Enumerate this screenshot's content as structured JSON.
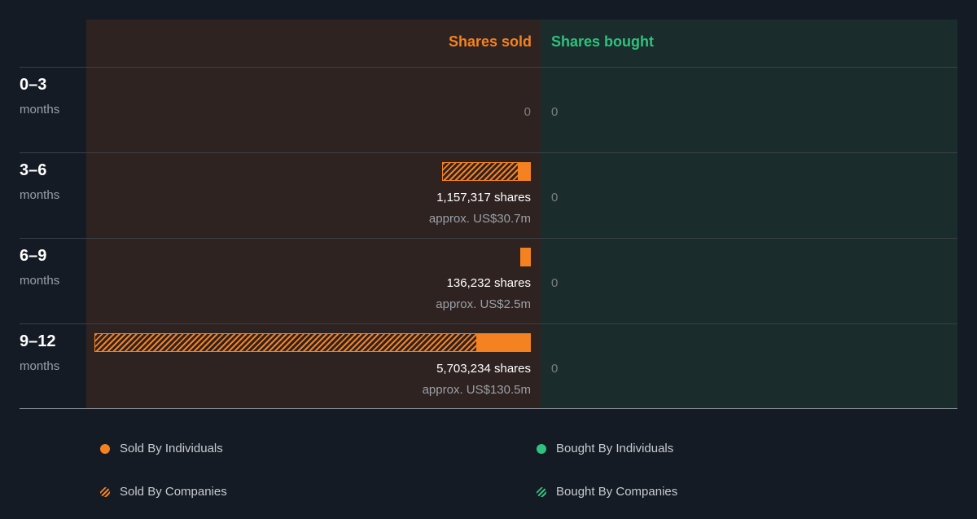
{
  "header": {
    "sold_label": "Shares sold",
    "bought_label": "Shares bought"
  },
  "colors": {
    "sold": "#f58220",
    "bought": "#2ec27e",
    "background": "#151b24"
  },
  "rows": [
    {
      "period": "0–3",
      "unit": "months",
      "sold_zero": "0",
      "bought_zero": "0"
    },
    {
      "period": "3–6",
      "unit": "months",
      "shares": "1,157,317 shares",
      "approx": "approx. US$30.7m",
      "bought_zero": "0"
    },
    {
      "period": "6–9",
      "unit": "months",
      "shares": "136,232 shares",
      "approx": "approx. US$2.5m",
      "bought_zero": "0"
    },
    {
      "period": "9–12",
      "unit": "months",
      "shares": "5,703,234 shares",
      "approx": "approx. US$130.5m",
      "bought_zero": "0"
    }
  ],
  "legend": {
    "sold_individuals": "Sold By Individuals",
    "sold_companies": "Sold By Companies",
    "bought_individuals": "Bought By Individuals",
    "bought_companies": "Bought By Companies"
  },
  "chart_data": {
    "type": "bar",
    "orientation": "horizontal",
    "categories": [
      "0–3 months",
      "3–6 months",
      "6–9 months",
      "9–12 months"
    ],
    "series": [
      {
        "name": "Sold By Companies",
        "values": [
          0,
          1000000,
          0,
          5000000
        ]
      },
      {
        "name": "Sold By Individuals",
        "values": [
          0,
          157317,
          136232,
          703234
        ]
      },
      {
        "name": "Bought By Individuals",
        "values": [
          0,
          0,
          0,
          0
        ]
      },
      {
        "name": "Bought By Companies",
        "values": [
          0,
          0,
          0,
          0
        ]
      }
    ],
    "max_value": 5703234,
    "legend_position": "bottom",
    "grid": false
  }
}
